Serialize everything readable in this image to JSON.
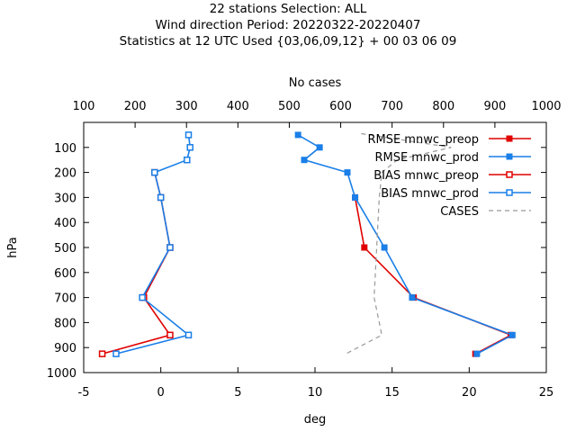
{
  "chart_data": {
    "type": "line",
    "title_lines": [
      "22 stations Selection: ALL",
      "Wind direction  Period: 20220322-20220407",
      "Statistics at 12 UTC  Used {03,06,09,12} + 00 03 06 09"
    ],
    "xlabel": "deg",
    "ylabel": "hPa",
    "x2label": "No cases",
    "xlim": [
      -5,
      25
    ],
    "ylim": [
      1000,
      0
    ],
    "x2lim": [
      100,
      1000
    ],
    "xticks": [
      "-5",
      "0",
      "5",
      "10",
      "15",
      "20",
      "25"
    ],
    "yticks": [
      "100",
      "200",
      "300",
      "400",
      "500",
      "600",
      "700",
      "800",
      "900",
      "1000"
    ],
    "x2ticks": [
      "100",
      "200",
      "300",
      "400",
      "500",
      "600",
      "700",
      "800",
      "900",
      "1000"
    ],
    "legend_position": "top-right",
    "series": [
      {
        "name": "RMSE mnwc_preop",
        "color": "#e00000",
        "marker": "filled-square",
        "dash": "solid",
        "axis": "x",
        "points": [
          [
            12.6,
            300
          ],
          [
            13.2,
            500
          ],
          [
            16.4,
            700
          ],
          [
            22.7,
            850
          ],
          [
            20.4,
            925
          ]
        ]
      },
      {
        "name": "RMSE mnwc_prod",
        "color": "#1a7fe8",
        "marker": "filled-square",
        "dash": "solid",
        "axis": "x",
        "points": [
          [
            8.9,
            50
          ],
          [
            10.3,
            100
          ],
          [
            9.3,
            150
          ],
          [
            12.1,
            200
          ],
          [
            12.6,
            300
          ],
          [
            14.5,
            500
          ],
          [
            16.3,
            700
          ],
          [
            22.8,
            850
          ],
          [
            20.5,
            925
          ]
        ]
      },
      {
        "name": "BIAS mnwc_preop",
        "color": "#e00000",
        "marker": "open-square",
        "dash": "solid",
        "axis": "x",
        "points": [
          [
            -0.4,
            200
          ],
          [
            0.0,
            300
          ],
          [
            0.6,
            500
          ],
          [
            -1.1,
            700
          ],
          [
            0.6,
            850
          ],
          [
            -3.8,
            925
          ]
        ]
      },
      {
        "name": "BIAS mnwc_prod",
        "color": "#1a7fe8",
        "marker": "open-square",
        "dash": "solid",
        "axis": "x",
        "points": [
          [
            1.8,
            50
          ],
          [
            1.9,
            100
          ],
          [
            1.7,
            150
          ],
          [
            -0.4,
            200
          ],
          [
            0.0,
            300
          ],
          [
            0.6,
            500
          ],
          [
            -1.2,
            700
          ],
          [
            1.8,
            850
          ],
          [
            -2.9,
            925
          ]
        ]
      },
      {
        "name": "CASES",
        "color": "#999999",
        "marker": "none",
        "dash": "dashed",
        "axis": "x2",
        "points": [
          [
            640,
            45
          ],
          [
            815,
            100
          ],
          [
            710,
            150
          ],
          [
            680,
            200
          ],
          [
            675,
            300
          ],
          [
            670,
            500
          ],
          [
            665,
            700
          ],
          [
            680,
            850
          ],
          [
            610,
            925
          ]
        ]
      }
    ]
  }
}
